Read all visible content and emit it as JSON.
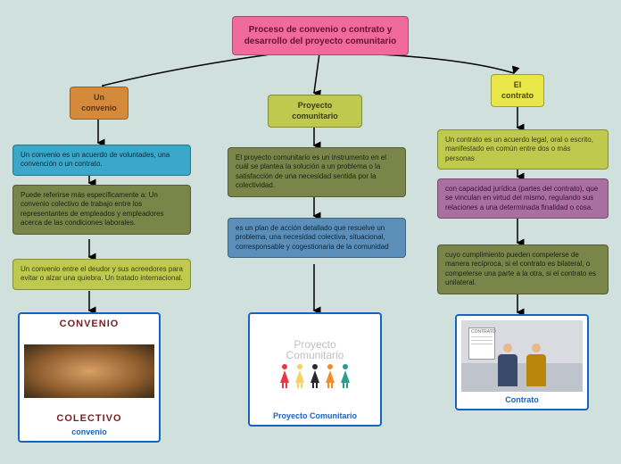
{
  "bg_color": "#cfe0dd",
  "title": {
    "text": "Proceso de convenio o contrato y desarrollo del proyecto comunitario",
    "bg": "#f06a9b",
    "fg": "#6b1034"
  },
  "cols": {
    "convenio": {
      "header": {
        "text": "Un convenio",
        "bg": "#d48a3a",
        "fg": "#5a3410"
      },
      "b1": {
        "text": "Un convenio es un acuerdo de voluntades, una convención o un contrato.",
        "bg": "#3ba7c9",
        "fg": "#0a2a40"
      },
      "b2": {
        "text": "Puede referirse más específicamente a: Un convenio colectivo de trabajo entre los representantes de empleados y empleadores acerca de las condiciones laborales.",
        "bg": "#7a854a",
        "fg": "#1e2210"
      },
      "b3": {
        "text": "Un convenio entre el deudor y sus acreedores para evitar o alzar una quiebra. Un tratado internacional.",
        "bg": "#bfc94e",
        "fg": "#3a3e10"
      },
      "img": {
        "caption": "convenio",
        "border": "#1565c0",
        "caption_color": "#1565c0",
        "top_text": "CONVENIO",
        "bottom_text": "COLECTIVO"
      }
    },
    "proyecto": {
      "header": {
        "text": "Proyecto comunitario",
        "bg": "#bfc94e",
        "fg": "#3a3e10"
      },
      "b1": {
        "text": "El proyecto comunitario es un instrumento en el cuál se plantea la solución a un problema o la satisfacción de una necesidad sentida por la colectividad.",
        "bg": "#7a854a",
        "fg": "#1e2210"
      },
      "b2": {
        "text": "es un plan de acción detallado que resuelve un problema, una necesidad colectiva, situacional, corresponsable y cogestionaria de la comunidad",
        "bg": "#5b8fb9",
        "fg": "#0d2538"
      },
      "img": {
        "caption": "Proyecto Comunitario",
        "border": "#1565c0",
        "caption_color": "#1565c0",
        "title1": "Proyecto",
        "title2": "Comunitario",
        "sticks": [
          {
            "c": "#e63946"
          },
          {
            "c": "#f4d35e"
          },
          {
            "c": "#2a2a2a"
          },
          {
            "c": "#f28c28"
          },
          {
            "c": "#2a9d8f"
          }
        ]
      }
    },
    "contrato": {
      "header": {
        "text": "El contrato",
        "bg": "#e9e64a",
        "fg": "#4a4710"
      },
      "b1": {
        "text": "Un contrato es un acuerdo legal, oral o escrito, manifestado en común entre dos o más personas",
        "bg": "#bfc94e",
        "fg": "#3a3e10"
      },
      "b2": {
        "text": "con capacidad jurídica (partes del contrato), que se vinculan en virtud del mismo, regulando sus relaciones a una determinada finalidad o cosa.",
        "bg": "#a86fa0",
        "fg": "#3a1038"
      },
      "b3": {
        "text": "cuyo cumplimiento pueden compelerse de manera recíproca, si el contrato es bilateral, o compelerse una parte a la otra, si el contrato es unilateral.",
        "bg": "#7a854a",
        "fg": "#1e2210"
      },
      "img": {
        "caption": "Contrato",
        "border": "#1565c0",
        "caption_color": "#1565c0",
        "doc_label": "CONTRATO",
        "p1": "#3a4a6b",
        "p2": "#b8860b"
      }
    }
  }
}
